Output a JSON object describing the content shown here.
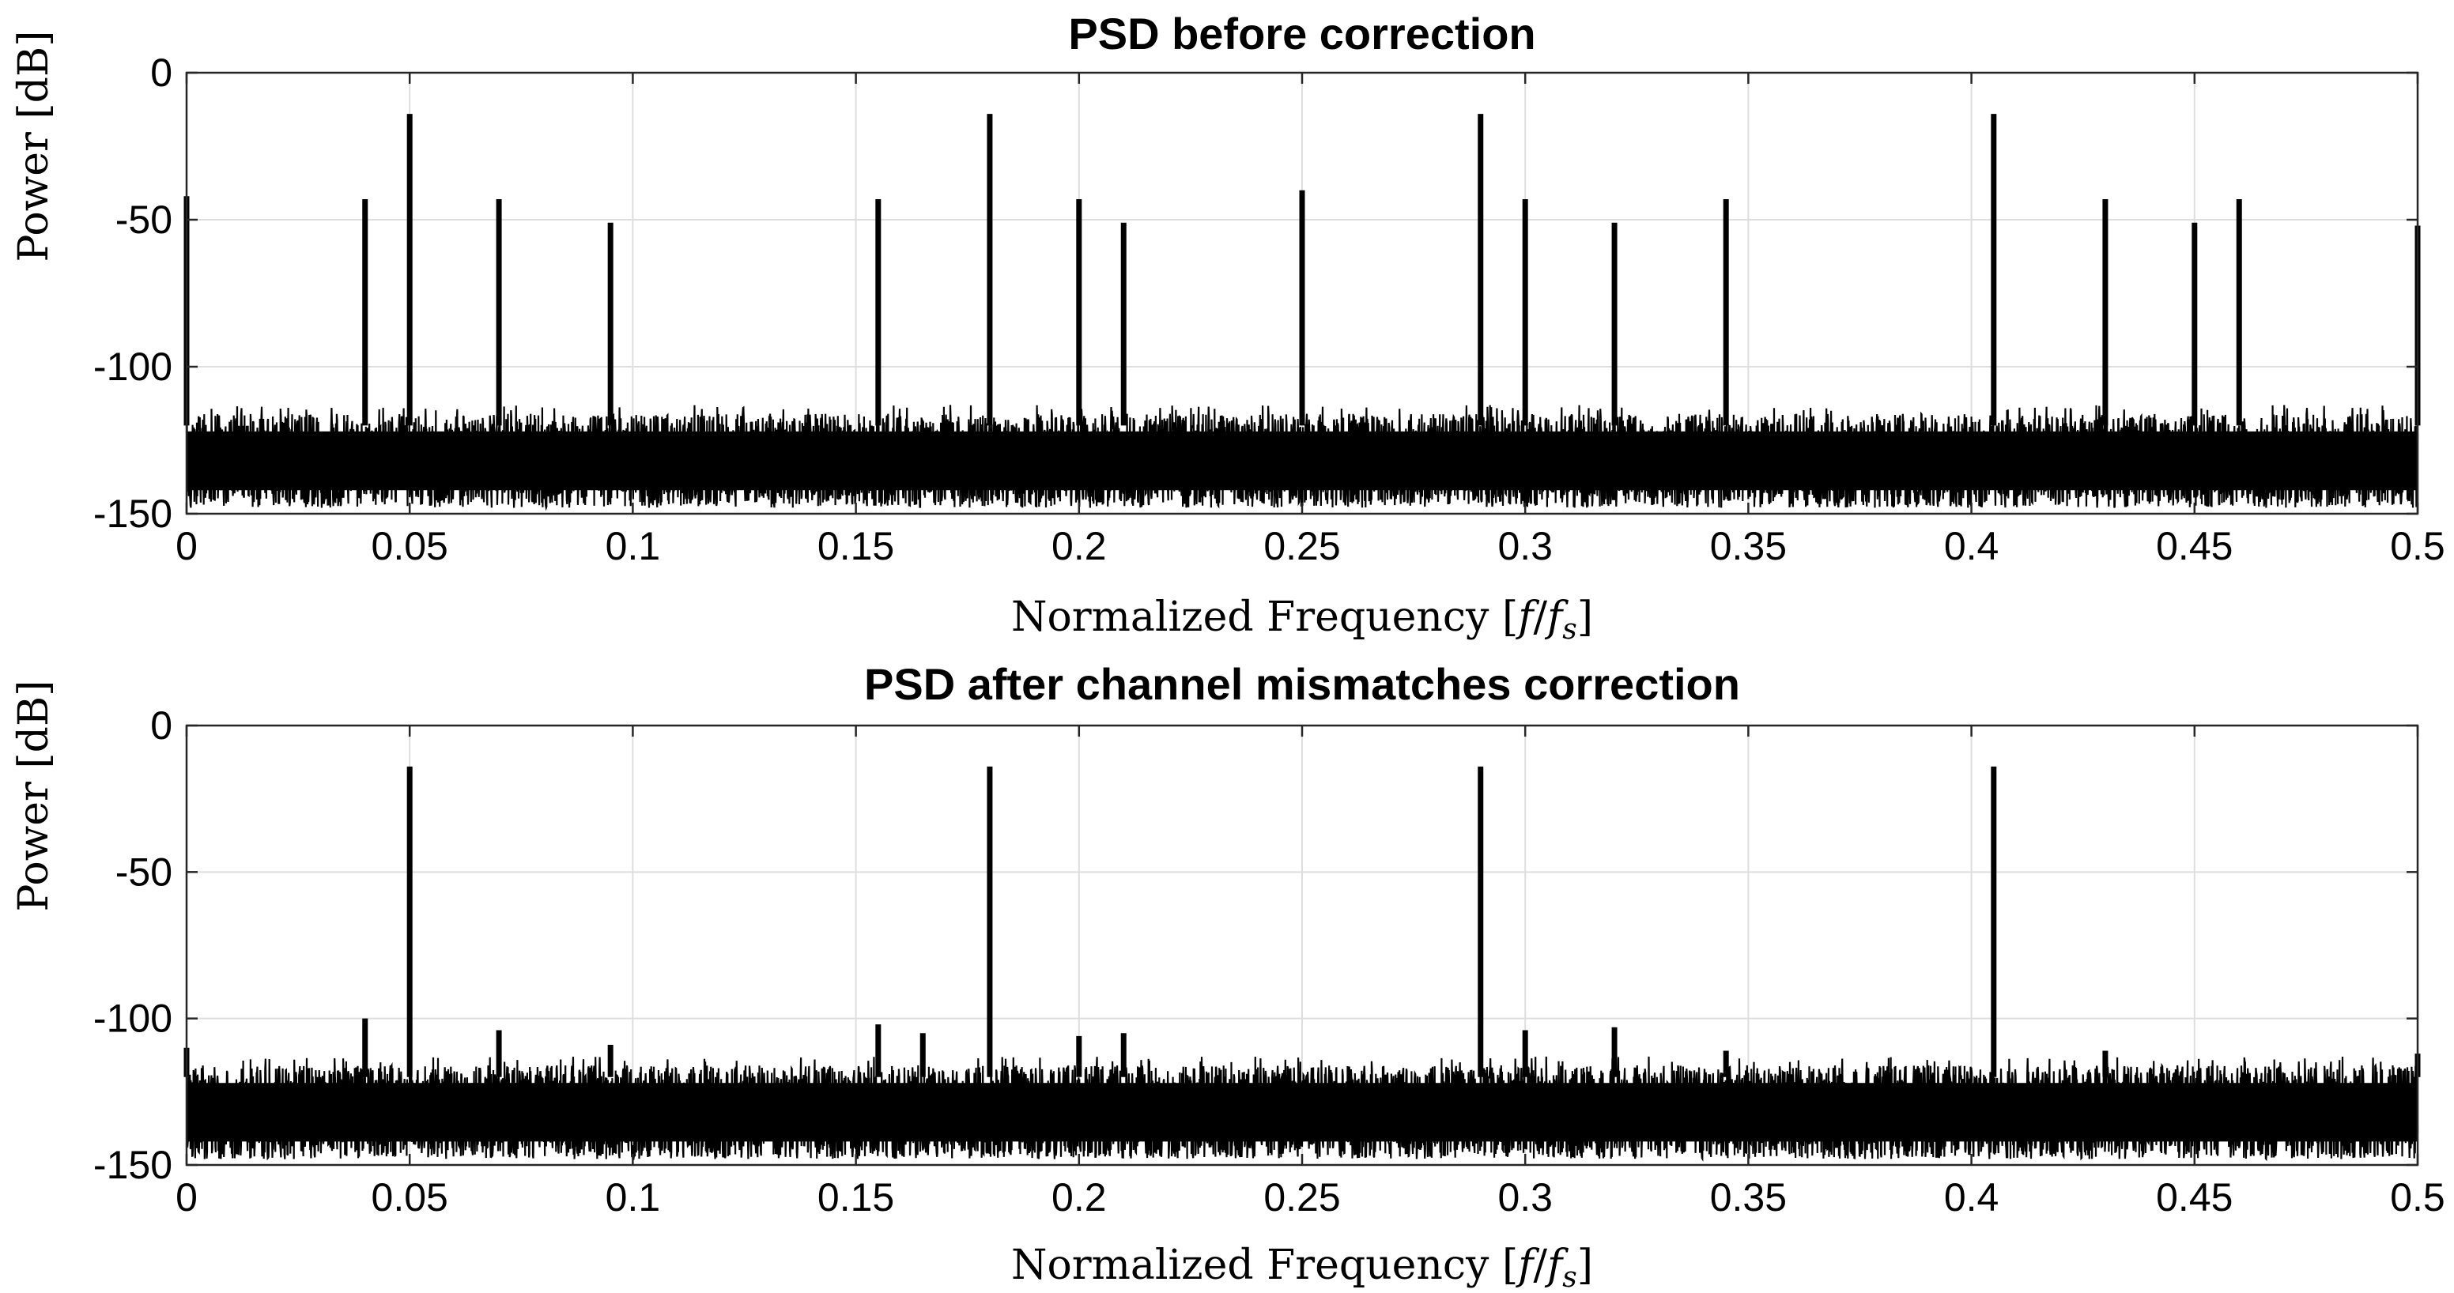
{
  "chart_data": [
    {
      "type": "line",
      "title": "PSD before correction",
      "xlabel_prefix": "Normalized Frequency [",
      "xlabel_f": "f",
      "xlabel_slash": "/",
      "xlabel_fs": "f",
      "xlabel_sub": "s",
      "xlabel_suffix": "]",
      "ylabel": "Power [dB]",
      "xlim": [
        0,
        0.5
      ],
      "ylim": [
        -150,
        0
      ],
      "xticks": [
        0,
        0.05,
        0.1,
        0.15,
        0.2,
        0.25,
        0.3,
        0.35,
        0.4,
        0.45,
        0.5
      ],
      "xtick_labels": [
        "0",
        "0.05",
        "0.1",
        "0.15",
        "0.2",
        "0.25",
        "0.3",
        "0.35",
        "0.4",
        "0.45",
        "0.5"
      ],
      "yticks": [
        0,
        -50,
        -100,
        -150
      ],
      "ytick_labels": [
        "0",
        "-50",
        "-100",
        "-150"
      ],
      "grid": true,
      "noise_floor_db": [
        -150,
        -115
      ],
      "peaks": [
        {
          "f": 0.0,
          "db": -42
        },
        {
          "f": 0.04,
          "db": -43
        },
        {
          "f": 0.05,
          "db": -14
        },
        {
          "f": 0.07,
          "db": -43
        },
        {
          "f": 0.095,
          "db": -51
        },
        {
          "f": 0.155,
          "db": -43
        },
        {
          "f": 0.18,
          "db": -14
        },
        {
          "f": 0.2,
          "db": -43
        },
        {
          "f": 0.21,
          "db": -51
        },
        {
          "f": 0.25,
          "db": -40
        },
        {
          "f": 0.29,
          "db": -14
        },
        {
          "f": 0.3,
          "db": -43
        },
        {
          "f": 0.32,
          "db": -51
        },
        {
          "f": 0.345,
          "db": -43
        },
        {
          "f": 0.405,
          "db": -14
        },
        {
          "f": 0.43,
          "db": -43
        },
        {
          "f": 0.45,
          "db": -51
        },
        {
          "f": 0.46,
          "db": -43
        },
        {
          "f": 0.5,
          "db": -52
        }
      ]
    },
    {
      "type": "line",
      "title": "PSD after channel mismatches correction",
      "xlabel_prefix": "Normalized Frequency [",
      "xlabel_f": "f",
      "xlabel_slash": "/",
      "xlabel_fs": "f",
      "xlabel_sub": "s",
      "xlabel_suffix": "]",
      "ylabel": "Power [dB]",
      "xlim": [
        0,
        0.5
      ],
      "ylim": [
        -150,
        0
      ],
      "xticks": [
        0,
        0.05,
        0.1,
        0.15,
        0.2,
        0.25,
        0.3,
        0.35,
        0.4,
        0.45,
        0.5
      ],
      "xtick_labels": [
        "0",
        "0.05",
        "0.1",
        "0.15",
        "0.2",
        "0.25",
        "0.3",
        "0.35",
        "0.4",
        "0.45",
        "0.5"
      ],
      "yticks": [
        0,
        -50,
        -100,
        -150
      ],
      "ytick_labels": [
        "0",
        "-50",
        "-100",
        "-150"
      ],
      "grid": true,
      "noise_floor_db": [
        -150,
        -115
      ],
      "peaks": [
        {
          "f": 0.0,
          "db": -110
        },
        {
          "f": 0.04,
          "db": -100
        },
        {
          "f": 0.05,
          "db": -14
        },
        {
          "f": 0.07,
          "db": -104
        },
        {
          "f": 0.095,
          "db": -109
        },
        {
          "f": 0.155,
          "db": -102
        },
        {
          "f": 0.165,
          "db": -105
        },
        {
          "f": 0.18,
          "db": -14
        },
        {
          "f": 0.2,
          "db": -106
        },
        {
          "f": 0.21,
          "db": -105
        },
        {
          "f": 0.29,
          "db": -14
        },
        {
          "f": 0.3,
          "db": -104
        },
        {
          "f": 0.32,
          "db": -103
        },
        {
          "f": 0.345,
          "db": -111
        },
        {
          "f": 0.405,
          "db": -14
        },
        {
          "f": 0.43,
          "db": -111
        },
        {
          "f": 0.5,
          "db": -112
        }
      ]
    }
  ]
}
